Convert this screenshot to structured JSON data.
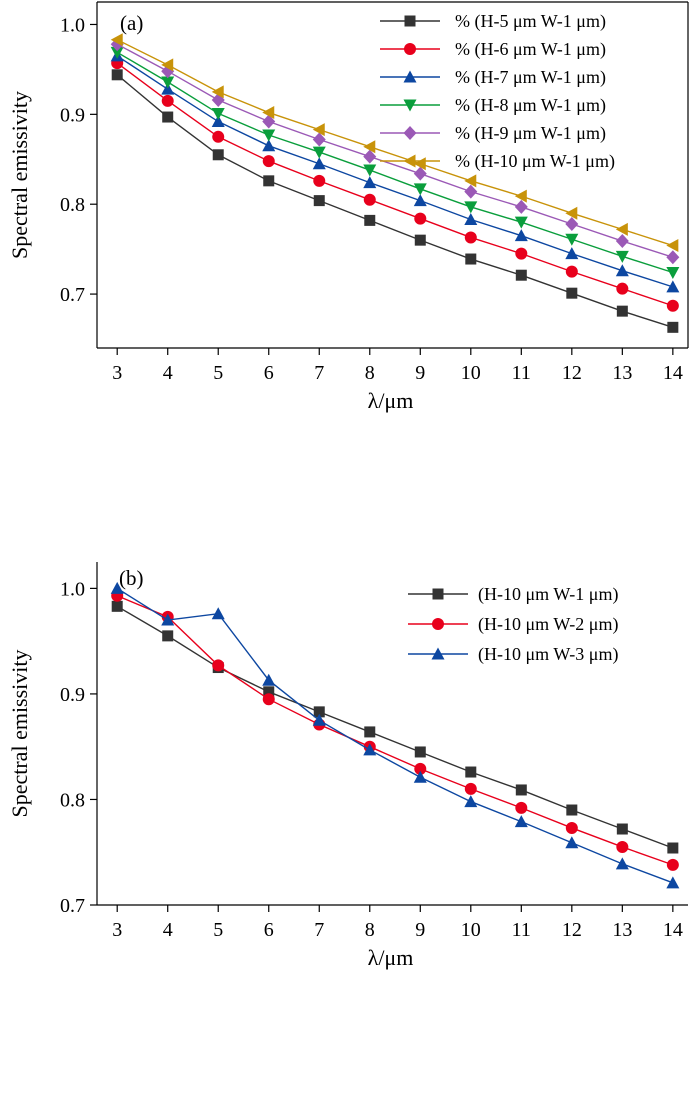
{
  "chart_data": [
    {
      "type": "line",
      "panel_label": "(a)",
      "xlabel": "λ/μm",
      "ylabel": "Spectral emissivity",
      "x": [
        3,
        4,
        5,
        6,
        7,
        8,
        9,
        10,
        11,
        12,
        13,
        14
      ],
      "xlim": [
        2.6,
        14.3
      ],
      "ylim": [
        0.64,
        1.025
      ],
      "xticks": [
        3,
        4,
        5,
        6,
        7,
        8,
        9,
        10,
        11,
        12,
        13,
        14
      ],
      "xtick_labels": [
        "3",
        "4",
        "5",
        "6",
        "7",
        "8",
        "9",
        "10",
        "11",
        "12",
        "13",
        "14"
      ],
      "yticks": [
        0.7,
        0.8,
        0.9,
        1.0
      ],
      "ytick_labels": [
        "0.7",
        "0.8",
        "0.9",
        "1.0"
      ],
      "legend_position": "top-right",
      "grid": false,
      "series": [
        {
          "name": "% (H-5 μm W-1 μm)",
          "marker": "square",
          "color": "#333333",
          "values": [
            0.944,
            0.897,
            0.855,
            0.826,
            0.804,
            0.782,
            0.76,
            0.739,
            0.721,
            0.701,
            0.681,
            0.663
          ]
        },
        {
          "name": "% (H-6 μm W-1 μm)",
          "marker": "circle",
          "color": "#e8001c",
          "values": [
            0.957,
            0.915,
            0.875,
            0.848,
            0.826,
            0.805,
            0.784,
            0.763,
            0.745,
            0.725,
            0.706,
            0.687
          ]
        },
        {
          "name": "% (H-7 μm W-1 μm)",
          "marker": "triangle-up",
          "color": "#0d47a1",
          "values": [
            0.965,
            0.928,
            0.892,
            0.865,
            0.845,
            0.824,
            0.804,
            0.783,
            0.765,
            0.745,
            0.726,
            0.708
          ]
        },
        {
          "name": "% (H-8 μm W-1 μm)",
          "marker": "triangle-down",
          "color": "#0a9e3c",
          "values": [
            0.969,
            0.936,
            0.901,
            0.877,
            0.858,
            0.838,
            0.817,
            0.797,
            0.78,
            0.761,
            0.742,
            0.724
          ]
        },
        {
          "name": "% (H-9 μm W-1 μm)",
          "marker": "diamond",
          "color": "#9b59b6",
          "values": [
            0.978,
            0.948,
            0.916,
            0.892,
            0.872,
            0.853,
            0.834,
            0.814,
            0.797,
            0.778,
            0.759,
            0.741
          ]
        },
        {
          "name": "% (H-10 μm W-1 μm)",
          "marker": "triangle-left",
          "color": "#c8930a",
          "values": [
            0.983,
            0.955,
            0.925,
            0.902,
            0.883,
            0.864,
            0.845,
            0.826,
            0.809,
            0.79,
            0.772,
            0.754
          ]
        }
      ]
    },
    {
      "type": "line",
      "panel_label": "(b)",
      "xlabel": "λ/μm",
      "ylabel": "Spectral emissivity",
      "x": [
        3,
        4,
        5,
        6,
        7,
        8,
        9,
        10,
        11,
        12,
        13,
        14
      ],
      "xlim": [
        2.6,
        14.3
      ],
      "ylim": [
        0.7,
        1.025
      ],
      "xticks": [
        3,
        4,
        5,
        6,
        7,
        8,
        9,
        10,
        11,
        12,
        13,
        14
      ],
      "xtick_labels": [
        "3",
        "4",
        "5",
        "6",
        "7",
        "8",
        "9",
        "10",
        "11",
        "12",
        "13",
        "14"
      ],
      "yticks": [
        0.7,
        0.8,
        0.9,
        1.0
      ],
      "ytick_labels": [
        "0.7",
        "0.8",
        "0.9",
        "1.0"
      ],
      "legend_position": "top-right",
      "grid": false,
      "series": [
        {
          "name": "(H-10 μm W-1 μm)",
          "marker": "square",
          "color": "#333333",
          "values": [
            0.983,
            0.955,
            0.925,
            0.902,
            0.883,
            0.864,
            0.845,
            0.826,
            0.809,
            0.79,
            0.772,
            0.754
          ]
        },
        {
          "name": "(H-10 μm W-2 μm)",
          "marker": "circle",
          "color": "#e8001c",
          "values": [
            0.993,
            0.973,
            0.927,
            0.895,
            0.871,
            0.85,
            0.829,
            0.81,
            0.792,
            0.773,
            0.755,
            0.738
          ]
        },
        {
          "name": "(H-10 μm W-3 μm)",
          "marker": "triangle-up",
          "color": "#0d47a1",
          "values": [
            1.0,
            0.97,
            0.976,
            0.913,
            0.875,
            0.847,
            0.821,
            0.798,
            0.779,
            0.759,
            0.739,
            0.721
          ]
        }
      ]
    }
  ]
}
